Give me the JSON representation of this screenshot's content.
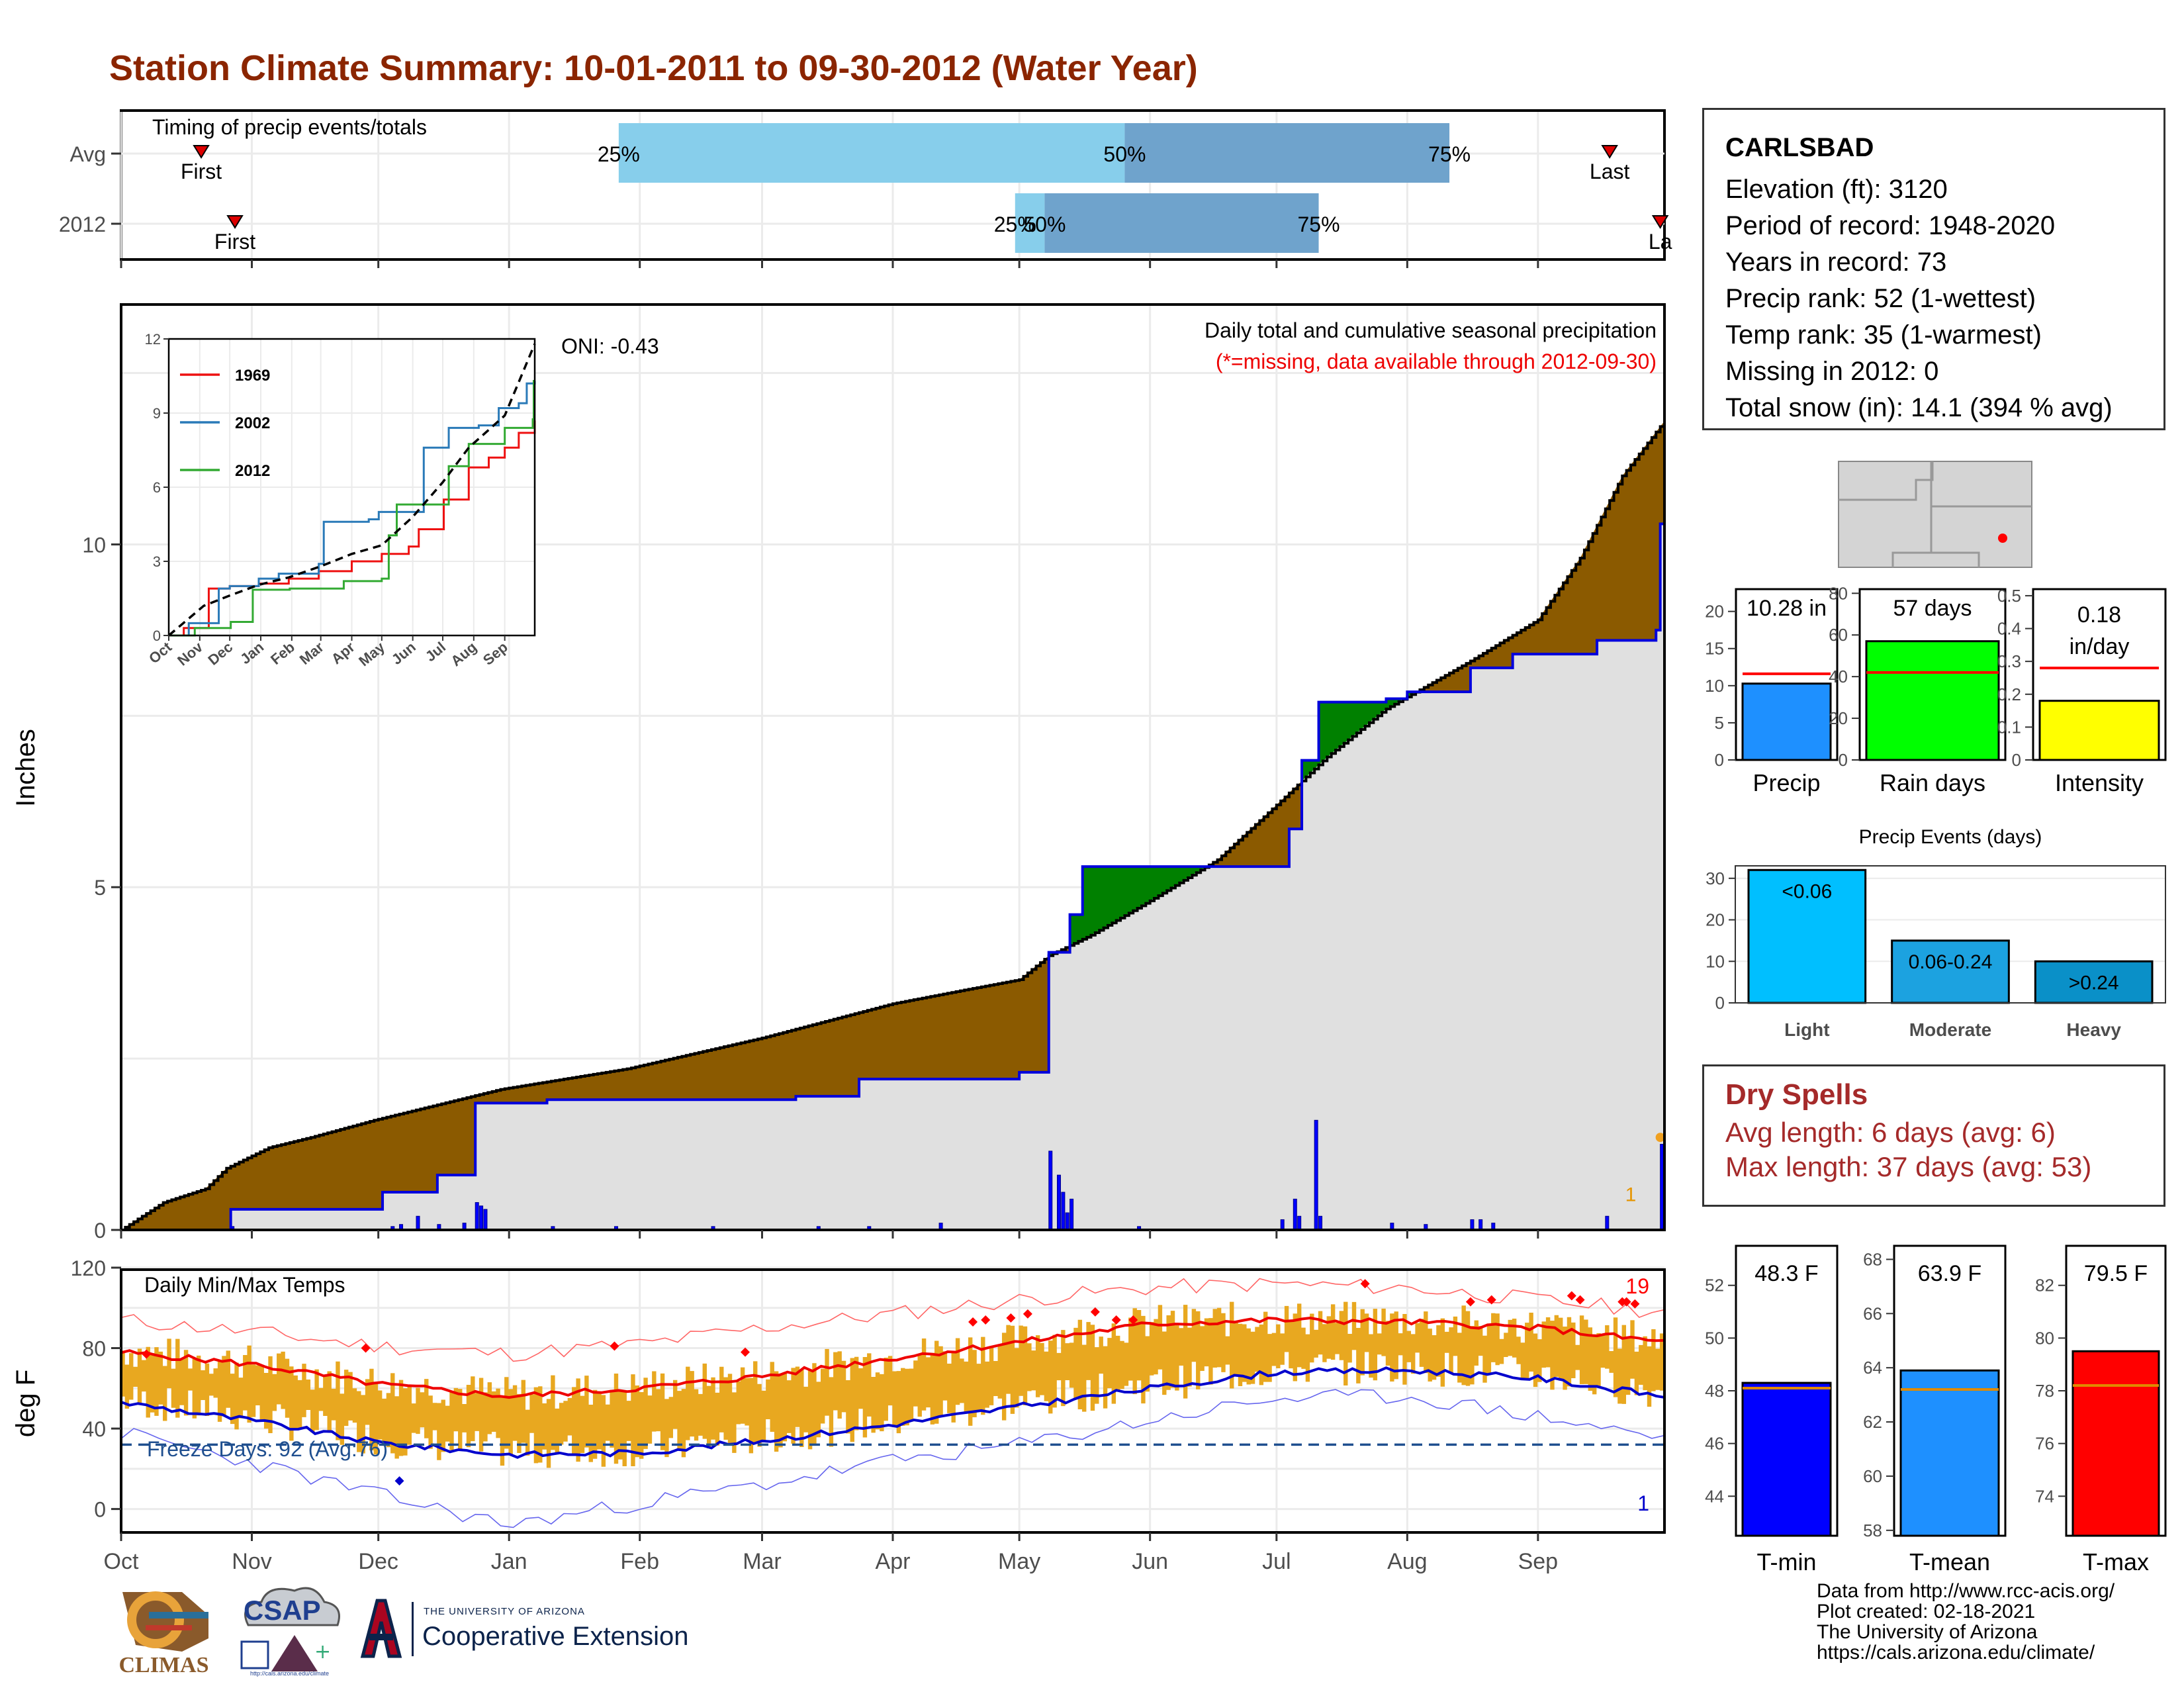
{
  "page": {
    "title": "Station Climate Summary: 10-01-2011 to 09-30-2012 (Water Year)",
    "credits": [
      "Data from http://www.rcc-acis.org/",
      "Plot created: 02-18-2021",
      "The University of Arizona",
      "https://cals.arizona.edu/climate/"
    ],
    "logos": {
      "climas": "CLIMAS",
      "csap": "CSAP",
      "csap_url": "http://cals.arizona.edu/climate",
      "uofa_small": "THE UNIVERSITY OF ARIZONA",
      "uofa_ext": "Cooperative Extension"
    }
  },
  "station": {
    "name": "CARLSBAD",
    "lines": [
      "Elevation (ft): 3120",
      "Period of record: 1948-2020",
      "Years in record: 73",
      "Precip rank: 52 (1-wettest)",
      "Temp rank: 35 (1-warmest)",
      "Missing in 2012: 0",
      "Total snow (in): 14.1 (394 % avg)"
    ]
  },
  "dry_spells": {
    "title": "Dry Spells",
    "avg": "Avg length: 6 days (avg: 6)",
    "max": "Max length: 37 days (avg: 53)"
  },
  "chart_data": [
    {
      "id": "timing",
      "type": "bar",
      "title": "Timing of precip events/totals",
      "rows": [
        {
          "label": "Avg",
          "first": "Oct 20",
          "last": "Sep 18",
          "q25": "Jan 27",
          "q50": "May 26",
          "q75": "Aug 11",
          "first_label": "First",
          "last_label": "Last"
        },
        {
          "label": "2012",
          "first": "Oct 28",
          "last": "Sep 30",
          "q25": "Apr 30",
          "q50": "May 7",
          "q75": "Jul 11",
          "first_label": "First",
          "last_label": "La"
        }
      ],
      "pct_labels": [
        "25%",
        "50%",
        "75%"
      ],
      "colors": {
        "inner": "#87ceeb",
        "outer": "#6fa3cc",
        "marker": "#dd0000"
      }
    },
    {
      "id": "precip",
      "type": "area",
      "title": "Daily total and cumulative seasonal precipitation",
      "subtitle": "(*=missing, data available through 2012-09-30)",
      "oni": "ONI: -0.43",
      "ylabel": "Inches",
      "ylim": [
        0,
        13.5
      ],
      "yticks": [
        0,
        5,
        10
      ],
      "xlim_days": [
        0,
        366
      ],
      "month_labels": [
        "Oct",
        "Nov",
        "Dec",
        "Jan",
        "Feb",
        "Mar",
        "Apr",
        "May",
        "Jun",
        "Jul",
        "Aug",
        "Sep"
      ],
      "month_starts": [
        0,
        31,
        61,
        92,
        123,
        152,
        183,
        213,
        244,
        274,
        305,
        336
      ],
      "avg_cumulative": [
        [
          0,
          0
        ],
        [
          10,
          0.4
        ],
        [
          20,
          0.6
        ],
        [
          25,
          0.9
        ],
        [
          35,
          1.2
        ],
        [
          45,
          1.35
        ],
        [
          60,
          1.6
        ],
        [
          90,
          2.05
        ],
        [
          120,
          2.35
        ],
        [
          152,
          2.8
        ],
        [
          183,
          3.3
        ],
        [
          200,
          3.5
        ],
        [
          213,
          3.65
        ],
        [
          220,
          4.0
        ],
        [
          230,
          4.3
        ],
        [
          244,
          4.8
        ],
        [
          260,
          5.4
        ],
        [
          274,
          6.2
        ],
        [
          286,
          6.9
        ],
        [
          300,
          7.6
        ],
        [
          320,
          8.3
        ],
        [
          336,
          8.9
        ],
        [
          346,
          9.8
        ],
        [
          356,
          11.0
        ],
        [
          366,
          11.8
        ]
      ],
      "obs_cumulative": [
        [
          0,
          0
        ],
        [
          26,
          0.3
        ],
        [
          50,
          0.3
        ],
        [
          62,
          0.55
        ],
        [
          75,
          0.8
        ],
        [
          84,
          1.85
        ],
        [
          100,
          1.85
        ],
        [
          101,
          1.9
        ],
        [
          121,
          1.9
        ],
        [
          160,
          1.95
        ],
        [
          175,
          2.2
        ],
        [
          213,
          2.3
        ],
        [
          220,
          4.05
        ],
        [
          225,
          4.6
        ],
        [
          228,
          5.3
        ],
        [
          244,
          5.3
        ],
        [
          255,
          5.3
        ],
        [
          274,
          5.3
        ],
        [
          277,
          5.85
        ],
        [
          280,
          6.85
        ],
        [
          284,
          7.7
        ],
        [
          300,
          7.75
        ],
        [
          305,
          7.85
        ],
        [
          320,
          8.2
        ],
        [
          330,
          8.4
        ],
        [
          336,
          8.4
        ],
        [
          350,
          8.6
        ],
        [
          364,
          8.75
        ],
        [
          365,
          10.3
        ],
        [
          366,
          10.3
        ]
      ],
      "daily_bars": [
        [
          26,
          0.05
        ],
        [
          64,
          0.05
        ],
        [
          66,
          0.08
        ],
        [
          70,
          0.2
        ],
        [
          75,
          0.08
        ],
        [
          81,
          0.1
        ],
        [
          84,
          0.4
        ],
        [
          85,
          0.35
        ],
        [
          86,
          0.3
        ],
        [
          102,
          0.05
        ],
        [
          117,
          0.05
        ],
        [
          140,
          0.05
        ],
        [
          165,
          0.05
        ],
        [
          177,
          0.05
        ],
        [
          194,
          0.1
        ],
        [
          220,
          1.15
        ],
        [
          222,
          0.8
        ],
        [
          223,
          0.55
        ],
        [
          224,
          0.25
        ],
        [
          225,
          0.45
        ],
        [
          241,
          0.05
        ],
        [
          275,
          0.15
        ],
        [
          278,
          0.45
        ],
        [
          279,
          0.2
        ],
        [
          283,
          1.6
        ],
        [
          284,
          0.2
        ],
        [
          301,
          0.1
        ],
        [
          309,
          0.08
        ],
        [
          320,
          0.15
        ],
        [
          322,
          0.15
        ],
        [
          325,
          0.1
        ],
        [
          352,
          0.2
        ],
        [
          365,
          1.25
        ]
      ],
      "colors": {
        "deficit": "#8b5a00",
        "surplus": "#008000",
        "fill": "#e0e0e0",
        "obs_line": "#0000dd",
        "avg_line": "#000000"
      },
      "end_marker_label": "1"
    },
    {
      "id": "inset",
      "type": "line",
      "ylim": [
        0,
        12
      ],
      "yticks": [
        0,
        3,
        6,
        9,
        12
      ],
      "month_labels": [
        "Oct",
        "Nov",
        "Dec",
        "Jan",
        "Feb",
        "Mar",
        "Apr",
        "May",
        "Jun",
        "Jul",
        "Aug",
        "Sep"
      ],
      "series": [
        {
          "name": "1969",
          "color": "#ee1111",
          "points": [
            [
              0,
              0
            ],
            [
              15,
              0.3
            ],
            [
              40,
              1.9
            ],
            [
              61,
              2.0
            ],
            [
              90,
              2.1
            ],
            [
              120,
              2.3
            ],
            [
              150,
              2.6
            ],
            [
              183,
              3.0
            ],
            [
              213,
              3.3
            ],
            [
              240,
              3.6
            ],
            [
              250,
              4.3
            ],
            [
              265,
              4.3
            ],
            [
              275,
              5.5
            ],
            [
              300,
              6.8
            ],
            [
              320,
              7.2
            ],
            [
              336,
              7.6
            ],
            [
              350,
              8.2
            ],
            [
              366,
              8.7
            ]
          ]
        },
        {
          "name": "2002",
          "color": "#2a7ab8",
          "points": [
            [
              0,
              0
            ],
            [
              20,
              0.5
            ],
            [
              50,
              1.9
            ],
            [
              61,
              2.0
            ],
            [
              90,
              2.3
            ],
            [
              110,
              2.5
            ],
            [
              150,
              2.9
            ],
            [
              155,
              4.6
            ],
            [
              183,
              4.6
            ],
            [
              200,
              4.7
            ],
            [
              210,
              5.0
            ],
            [
              245,
              5.0
            ],
            [
              255,
              7.6
            ],
            [
              280,
              8.4
            ],
            [
              310,
              8.5
            ],
            [
              330,
              9.2
            ],
            [
              350,
              9.4
            ],
            [
              358,
              10.2
            ],
            [
              366,
              10.3
            ]
          ]
        },
        {
          "name": "2012",
          "color": "#33aa33",
          "points": [
            [
              0,
              0
            ],
            [
              26,
              0.3
            ],
            [
              62,
              0.55
            ],
            [
              84,
              1.85
            ],
            [
              121,
              1.9
            ],
            [
              175,
              2.2
            ],
            [
              213,
              2.3
            ],
            [
              220,
              4.05
            ],
            [
              228,
              5.3
            ],
            [
              274,
              5.3
            ],
            [
              280,
              6.85
            ],
            [
              300,
              7.75
            ],
            [
              336,
              8.4
            ],
            [
              364,
              8.75
            ],
            [
              365,
              10.3
            ],
            [
              366,
              10.3
            ]
          ]
        }
      ],
      "avg_line": [
        [
          0,
          0
        ],
        [
          35,
          1.2
        ],
        [
          60,
          1.6
        ],
        [
          90,
          2.05
        ],
        [
          120,
          2.35
        ],
        [
          152,
          2.8
        ],
        [
          183,
          3.3
        ],
        [
          213,
          3.65
        ],
        [
          244,
          4.8
        ],
        [
          274,
          6.2
        ],
        [
          300,
          7.6
        ],
        [
          336,
          8.9
        ],
        [
          366,
          11.8
        ]
      ]
    },
    {
      "id": "temps",
      "type": "line",
      "title": "Daily Min/Max Temps",
      "ylabel": "deg F",
      "ylim": [
        -10,
        120
      ],
      "yticks": [
        0,
        40,
        80,
        120
      ],
      "freeze_label": "Freeze Days: 92 (Avg:76)",
      "freeze_line": 32,
      "count_hot": "19",
      "count_cold": "1",
      "avg_max": [
        [
          0,
          78
        ],
        [
          31,
          72
        ],
        [
          61,
          62
        ],
        [
          92,
          56
        ],
        [
          123,
          60
        ],
        [
          152,
          66
        ],
        [
          183,
          75
        ],
        [
          213,
          83
        ],
        [
          244,
          92
        ],
        [
          274,
          94
        ],
        [
          305,
          93
        ],
        [
          336,
          90
        ],
        [
          366,
          83
        ]
      ],
      "avg_min": [
        [
          0,
          53
        ],
        [
          31,
          44
        ],
        [
          61,
          33
        ],
        [
          92,
          27
        ],
        [
          123,
          28
        ],
        [
          152,
          34
        ],
        [
          183,
          42
        ],
        [
          213,
          51
        ],
        [
          244,
          60
        ],
        [
          274,
          68
        ],
        [
          305,
          69
        ],
        [
          336,
          65
        ],
        [
          366,
          56
        ]
      ],
      "record_max": [
        [
          0,
          94
        ],
        [
          31,
          88
        ],
        [
          61,
          81
        ],
        [
          92,
          77
        ],
        [
          123,
          82
        ],
        [
          152,
          90
        ],
        [
          183,
          97
        ],
        [
          213,
          104
        ],
        [
          244,
          110
        ],
        [
          274,
          112
        ],
        [
          305,
          110
        ],
        [
          336,
          104
        ],
        [
          366,
          98
        ]
      ],
      "record_min": [
        [
          0,
          38
        ],
        [
          31,
          23
        ],
        [
          61,
          7
        ],
        [
          92,
          -8
        ],
        [
          123,
          3
        ],
        [
          152,
          12
        ],
        [
          183,
          24
        ],
        [
          213,
          32
        ],
        [
          244,
          44
        ],
        [
          274,
          55
        ],
        [
          305,
          56
        ],
        [
          336,
          46
        ],
        [
          366,
          35
        ]
      ],
      "colors": {
        "band": "#e8a820",
        "avg_max": "#ee0000",
        "avg_min": "#0000cc",
        "rec_max": "#ff6666",
        "rec_min": "#6666ee",
        "freeze": "#1f4f8f"
      }
    },
    {
      "id": "summary_bars",
      "type": "bar",
      "panels": [
        {
          "name": "Precip",
          "label": "10.28 in",
          "value": 10.28,
          "avg": 11.6,
          "ylim": [
            0,
            23
          ],
          "yticks": [
            0,
            5,
            10,
            15,
            20
          ],
          "color": "#1e90ff"
        },
        {
          "name": "Rain days",
          "label": "57 days",
          "value": 57,
          "avg": 42,
          "ylim": [
            0,
            82
          ],
          "yticks": [
            0,
            20,
            40,
            60,
            80
          ],
          "color": "#00ff00"
        },
        {
          "name": "Intensity",
          "label": "0.18 in/day",
          "label_lines": [
            "0.18",
            "in/day"
          ],
          "value": 0.18,
          "avg": 0.28,
          "ylim": [
            0,
            0.52
          ],
          "yticks": [
            0.0,
            0.1,
            0.2,
            0.3,
            0.4,
            0.5
          ],
          "color": "#ffff00"
        }
      ]
    },
    {
      "id": "precip_events",
      "type": "bar",
      "title": "Precip Events (days)",
      "categories": [
        "Light",
        "Moderate",
        "Heavy"
      ],
      "values": [
        32,
        15,
        10
      ],
      "bar_labels": [
        "<0.06",
        "0.06-0.24",
        ">0.24"
      ],
      "ylim": [
        0,
        33
      ],
      "yticks": [
        0,
        10,
        20,
        30
      ],
      "colors": [
        "#00bfff",
        "#1ca2e0",
        "#0a90c8"
      ]
    },
    {
      "id": "temp_bars",
      "type": "bar",
      "panels": [
        {
          "name": "T-min",
          "label": "48.3 F",
          "value": 48.3,
          "avg": 48.1,
          "ylim": [
            42.5,
            53.5
          ],
          "yticks": [
            44,
            46,
            48,
            50,
            52
          ],
          "color": "#0000ff"
        },
        {
          "name": "T-mean",
          "label": "63.9 F",
          "value": 63.9,
          "avg": 63.2,
          "ylim": [
            57.8,
            68.5
          ],
          "yticks": [
            58,
            60,
            62,
            64,
            66,
            68
          ],
          "color": "#1e90ff"
        },
        {
          "name": "T-max",
          "label": "79.5 F",
          "value": 79.5,
          "avg": 78.2,
          "ylim": [
            72.5,
            83.5
          ],
          "yticks": [
            74,
            76,
            78,
            80,
            82
          ],
          "color": "#ff0000"
        }
      ]
    }
  ]
}
